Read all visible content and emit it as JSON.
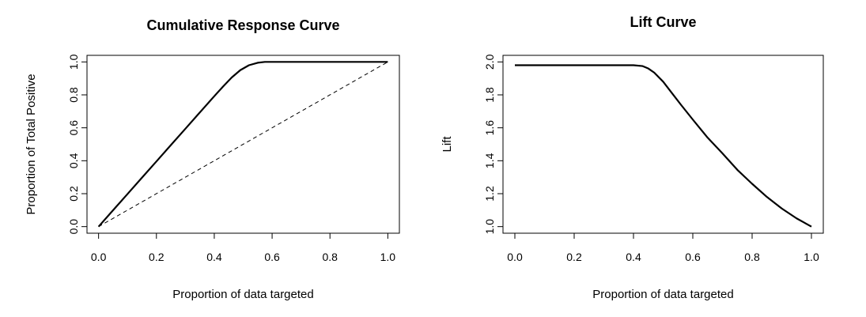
{
  "chart_data": [
    {
      "type": "line",
      "title": "Cumulative Response Curve",
      "xlabel": "Proportion of data targeted",
      "ylabel": "Proportion of Total Positive",
      "xlim": [
        0,
        1
      ],
      "ylim": [
        0,
        1
      ],
      "xticks": [
        0.0,
        0.2,
        0.4,
        0.6,
        0.8,
        1.0
      ],
      "xtick_labels": [
        "0.0",
        "0.2",
        "0.4",
        "0.6",
        "0.8",
        "1.0"
      ],
      "yticks": [
        0.0,
        0.2,
        0.4,
        0.6,
        0.8,
        1.0
      ],
      "ytick_labels": [
        "0.0",
        "0.2",
        "0.4",
        "0.6",
        "0.8",
        "1.0"
      ],
      "grid": false,
      "legend": "none",
      "series": [
        {
          "style": "solid",
          "x": [
            0.0,
            0.05,
            0.1,
            0.15,
            0.2,
            0.25,
            0.3,
            0.35,
            0.4,
            0.43,
            0.46,
            0.49,
            0.52,
            0.55,
            0.575,
            0.6,
            0.7,
            0.8,
            0.9,
            1.0
          ],
          "y": [
            0.0,
            0.099,
            0.198,
            0.297,
            0.396,
            0.495,
            0.594,
            0.693,
            0.792,
            0.85,
            0.905,
            0.95,
            0.98,
            0.995,
            1.0,
            1.0,
            1.0,
            1.0,
            1.0,
            1.0
          ]
        },
        {
          "style": "dashed",
          "x": [
            0.0,
            1.0
          ],
          "y": [
            0.0,
            1.0
          ]
        }
      ]
    },
    {
      "type": "line",
      "title": "Lift Curve",
      "xlabel": "Proportion of data targeted",
      "ylabel": "Lift",
      "xlim": [
        0,
        1
      ],
      "ylim": [
        1,
        2
      ],
      "xticks": [
        0.0,
        0.2,
        0.4,
        0.6,
        0.8,
        1.0
      ],
      "xtick_labels": [
        "0.0",
        "0.2",
        "0.4",
        "0.6",
        "0.8",
        "1.0"
      ],
      "yticks": [
        1.0,
        1.2,
        1.4,
        1.6,
        1.8,
        2.0
      ],
      "ytick_labels": [
        "1.0",
        "1.2",
        "1.4",
        "1.6",
        "1.8",
        "2.0"
      ],
      "grid": false,
      "legend": "none",
      "series": [
        {
          "style": "solid",
          "x": [
            0.0,
            0.1,
            0.2,
            0.3,
            0.4,
            0.43,
            0.45,
            0.47,
            0.5,
            0.53,
            0.56,
            0.6,
            0.65,
            0.7,
            0.75,
            0.8,
            0.85,
            0.9,
            0.95,
            1.0
          ],
          "y": [
            1.98,
            1.98,
            1.98,
            1.98,
            1.98,
            1.975,
            1.96,
            1.935,
            1.88,
            1.81,
            1.74,
            1.65,
            1.54,
            1.445,
            1.345,
            1.26,
            1.18,
            1.11,
            1.05,
            1.0
          ]
        }
      ]
    }
  ]
}
